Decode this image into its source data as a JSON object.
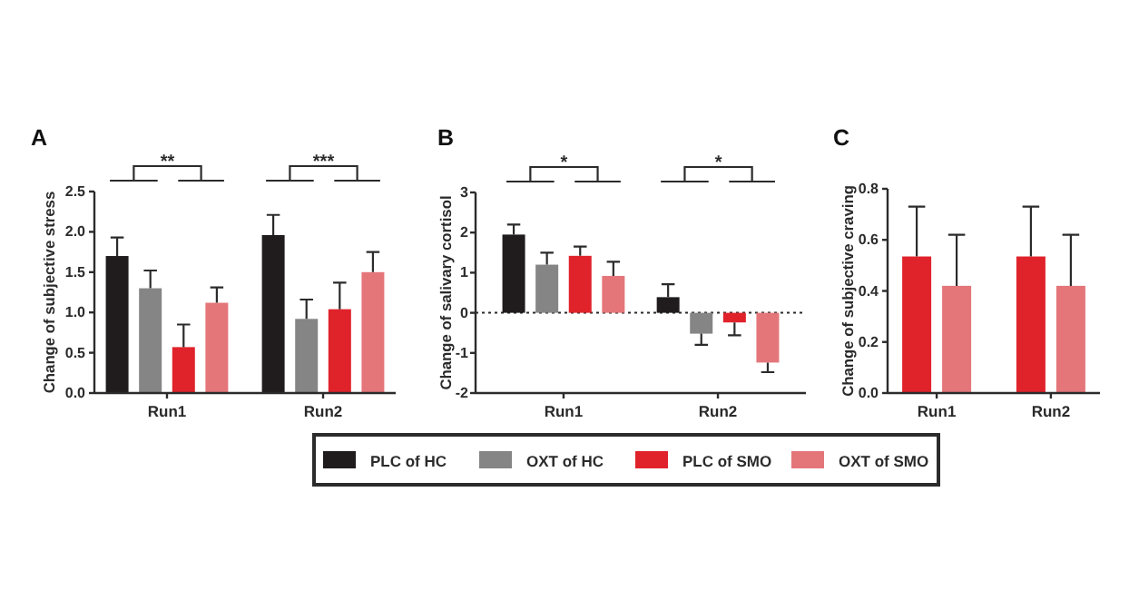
{
  "chart_data": [
    {
      "type": "bar",
      "title": "A",
      "ylabel": "Change of subjective stress",
      "categories": [
        "Run1",
        "Run2"
      ],
      "series": [
        {
          "name": "PLC of HC",
          "color": "#201c1d",
          "values": [
            1.7,
            1.96
          ],
          "errors": [
            [
              1.7,
              1.93
            ],
            [
              1.96,
              2.21
            ]
          ]
        },
        {
          "name": "OXT of HC",
          "color": "#858585",
          "values": [
            1.3,
            0.92
          ],
          "errors": [
            [
              1.3,
              1.52
            ],
            [
              0.92,
              1.16
            ]
          ]
        },
        {
          "name": "PLC of SMO",
          "color": "#e0232b",
          "values": [
            0.57,
            1.04
          ],
          "errors": [
            [
              0.57,
              0.85
            ],
            [
              1.04,
              1.37
            ]
          ]
        },
        {
          "name": "OXT of SMO",
          "color": "#e4767a",
          "values": [
            1.12,
            1.5
          ],
          "errors": [
            [
              1.12,
              1.31
            ],
            [
              1.5,
              1.75
            ]
          ]
        }
      ],
      "ylim": [
        0,
        2.5
      ],
      "yticks": [
        {
          "value": 0,
          "label": "0.0"
        },
        0.5,
        {
          "value": 1,
          "label": "1.0"
        },
        1.5,
        {
          "value": 2,
          "label": "2.0"
        },
        2.5
      ],
      "legend": "bottom",
      "annotations": [
        "**",
        "***"
      ]
    },
    {
      "type": "bar",
      "title": "B",
      "ylabel": "Change of salivary cortisol",
      "categories": [
        "Run1",
        "Run2"
      ],
      "series": [
        {
          "name": "PLC of HC",
          "color": "#201c1d",
          "values": [
            1.95,
            0.39
          ],
          "errors": [
            [
              1.95,
              2.2
            ],
            [
              0.39,
              0.71
            ]
          ]
        },
        {
          "name": "OXT of HC",
          "color": "#858585",
          "values": [
            1.2,
            -0.52
          ],
          "errors": [
            [
              1.2,
              1.5
            ],
            [
              -0.8,
              -0.52
            ]
          ]
        },
        {
          "name": "PLC of SMO",
          "color": "#e0232b",
          "values": [
            1.42,
            -0.24
          ],
          "errors": [
            [
              1.42,
              1.65
            ],
            [
              -0.56,
              -0.24
            ]
          ]
        },
        {
          "name": "OXT of SMO",
          "color": "#e4767a",
          "values": [
            0.92,
            -1.24
          ],
          "errors": [
            [
              0.92,
              1.27
            ],
            [
              -1.48,
              -1.24
            ]
          ]
        }
      ],
      "ylim": [
        -2,
        3
      ],
      "yticks": [
        -2,
        -1,
        0,
        1,
        2,
        3
      ],
      "ref_lines": [
        {
          "axis": "y",
          "value": 0,
          "line_style": "dotted"
        }
      ],
      "legend": "bottom",
      "annotations": [
        "*",
        "*"
      ]
    },
    {
      "type": "bar",
      "title": "C",
      "ylabel": "Change of subjective craving",
      "categories": [
        "Run1",
        "Run2"
      ],
      "series": [
        {
          "name": "PLC of SMO",
          "color": "#e0232b",
          "values": [
            0.535,
            0.535
          ],
          "errors": [
            [
              0.535,
              0.73
            ],
            [
              0.535,
              0.73
            ]
          ]
        },
        {
          "name": "OXT of SMO",
          "color": "#e4767a",
          "values": [
            0.42,
            0.42
          ],
          "errors": [
            [
              0.42,
              0.62
            ],
            [
              0.42,
              0.62
            ]
          ]
        }
      ],
      "ylim": [
        0,
        0.8
      ],
      "yticks": [
        {
          "value": 0,
          "label": "0.0"
        },
        {
          "value": 0.2,
          "label": "0.2"
        },
        {
          "value": 0.4,
          "label": "0.4"
        },
        {
          "value": 0.6,
          "label": "0.6"
        },
        {
          "value": 0.8,
          "label": "0.8"
        }
      ],
      "legend": "bottom"
    }
  ]
}
